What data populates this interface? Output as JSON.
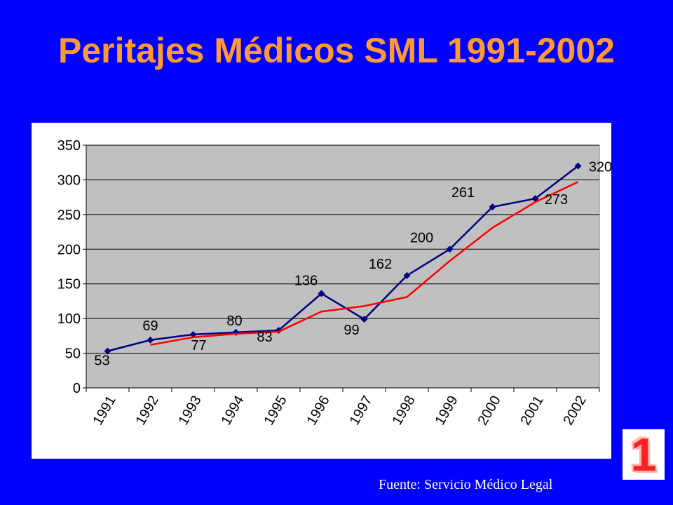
{
  "slide": {
    "title": "Peritajes Médicos SML 1991-2002",
    "source": "Fuente: Servicio Médico Legal",
    "badge": "1"
  },
  "colors": {
    "background": "#0000ff",
    "title": "#ff9933",
    "plot_area": "#c0c0c0",
    "series_main": "#000080",
    "series_trend": "#ff0000"
  },
  "chart_data": {
    "type": "line",
    "title": "",
    "xlabel": "",
    "ylabel": "",
    "categories": [
      "1991",
      "1992",
      "1993",
      "1994",
      "1995",
      "1996",
      "1997",
      "1998",
      "1999",
      "2000",
      "2001",
      "2002"
    ],
    "ylim": [
      0,
      350
    ],
    "yticks": [
      0,
      50,
      100,
      150,
      200,
      250,
      300,
      350
    ],
    "grid": true,
    "legend": "none",
    "series": [
      {
        "values": [
          53,
          69,
          77,
          80,
          83,
          136,
          99,
          162,
          200,
          261,
          273,
          320
        ],
        "labels": [
          "53",
          "69",
          "77",
          "80",
          "83",
          "136",
          "99",
          "162",
          "200",
          "261",
          "273",
          "320"
        ],
        "color": "#000080",
        "marker": "diamond"
      },
      {
        "values": [
          null,
          62,
          73,
          78,
          81,
          110,
          118,
          131,
          183,
          231,
          268,
          297
        ],
        "color": "#ff0000",
        "marker": "none"
      }
    ]
  }
}
